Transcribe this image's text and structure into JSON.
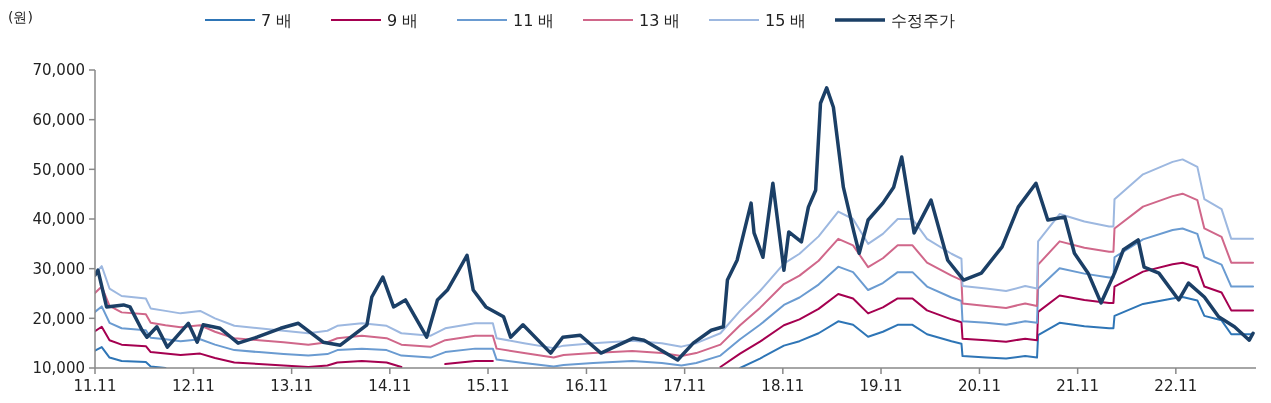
{
  "chart_data": {
    "type": "line",
    "ylabel": "(원)",
    "legend": "top",
    "marker": "none",
    "line_style": "solid",
    "grid": false,
    "xlim": [
      "2011-11-01",
      "2023-08-26"
    ],
    "xticks": [
      {
        "value": "2011-11-01",
        "label": "11.11"
      },
      {
        "value": "2012-11-01",
        "label": "12.11"
      },
      {
        "value": "2013-11-01",
        "label": "13.11"
      },
      {
        "value": "2014-11-01",
        "label": "14.11"
      },
      {
        "value": "2015-11-01",
        "label": "15.11"
      },
      {
        "value": "2016-11-01",
        "label": "16.11"
      },
      {
        "value": "2017-11-01",
        "label": "17.11"
      },
      {
        "value": "2018-11-01",
        "label": "18.11"
      },
      {
        "value": "2019-11-01",
        "label": "19.11"
      },
      {
        "value": "2020-11-01",
        "label": "20.11"
      },
      {
        "value": "2021-11-01",
        "label": "21.11"
      },
      {
        "value": "2022-11-01",
        "label": "22.11"
      }
    ],
    "ylim": [
      10000,
      70000
    ],
    "yticks": [
      {
        "value": 10000,
        "label": "10,000"
      },
      {
        "value": 20000,
        "label": "20,000"
      },
      {
        "value": 30000,
        "label": "30,000"
      },
      {
        "value": 40000,
        "label": "40,000"
      },
      {
        "value": 50000,
        "label": "50,000"
      },
      {
        "value": 60000,
        "label": "60,000"
      },
      {
        "value": 70000,
        "label": "70,000"
      }
    ],
    "x": [
      "2011-11-01",
      "2011-11-26",
      "2011-12-25",
      "2012-02-08",
      "2012-05-08",
      "2012-05-26",
      "2012-07-20",
      "2012-09-14",
      "2012-11-26",
      "2013-01-20",
      "2013-04-02",
      "2013-07-02",
      "2013-10-02",
      "2014-01-02",
      "2014-03-14",
      "2014-04-20",
      "2014-07-20",
      "2014-10-20",
      "2014-12-14",
      "2015-04-02",
      "2015-05-26",
      "2015-09-14",
      "2015-11-19",
      "2015-12-03",
      "2016-03-14",
      "2016-07-02",
      "2016-08-08",
      "2016-11-26",
      "2017-04-20",
      "2017-08-08",
      "2017-10-20",
      "2017-12-14",
      "2018-03-14",
      "2018-05-26",
      "2018-08-08",
      "2018-11-05",
      "2019-01-02",
      "2019-03-14",
      "2019-05-26",
      "2019-07-20",
      "2019-09-14",
      "2019-11-08",
      "2020-01-02",
      "2020-02-26",
      "2020-04-20",
      "2020-07-20",
      "2020-08-26",
      "2020-08-30",
      "2020-11-26",
      "2021-02-08",
      "2021-04-20",
      "2021-06-03",
      "2021-06-07",
      "2021-08-26",
      "2021-11-26",
      "2022-02-26",
      "2022-03-14",
      "2022-03-18",
      "2022-07-02",
      "2022-10-20",
      "2022-11-26",
      "2023-01-20",
      "2023-02-15",
      "2023-04-20",
      "2023-05-26",
      "2023-08-15"
    ],
    "series": [
      {
        "name": "7 배",
        "color": "#2e75b6",
        "values": [
          13500,
          14200,
          12100,
          11400,
          11200,
          10300,
          10000,
          null,
          null,
          null,
          null,
          null,
          null,
          null,
          null,
          null,
          null,
          null,
          null,
          null,
          null,
          null,
          null,
          null,
          null,
          null,
          null,
          null,
          null,
          null,
          null,
          null,
          null,
          10000,
          11900,
          14500,
          15400,
          17000,
          19400,
          18700,
          16300,
          17300,
          18700,
          18700,
          16800,
          15400,
          14900,
          12400,
          12100,
          11900,
          12400,
          12100,
          16600,
          19100,
          18400,
          18000,
          18000,
          20500,
          22900,
          24000,
          24300,
          23600,
          20500,
          19600,
          16800,
          16800
        ]
      },
      {
        "name": "9 배",
        "color": "#a50050",
        "values": [
          17400,
          18300,
          15600,
          14700,
          14400,
          13200,
          12900,
          12600,
          12900,
          12000,
          11100,
          10800,
          10500,
          10200,
          10500,
          11100,
          11400,
          11100,
          10200,
          null,
          10800,
          11400,
          11400,
          null,
          null,
          null,
          null,
          null,
          null,
          null,
          null,
          null,
          10200,
          12900,
          15300,
          18600,
          19800,
          21900,
          24900,
          24000,
          21000,
          22200,
          24000,
          24000,
          21600,
          19800,
          19200,
          15900,
          15600,
          15300,
          15900,
          15600,
          21300,
          24600,
          23700,
          23100,
          23100,
          26400,
          29400,
          30900,
          31200,
          30300,
          26400,
          25200,
          21600,
          21600
        ]
      },
      {
        "name": "11 배",
        "color": "#6a9bd1",
        "values": [
          21300,
          22400,
          19100,
          18000,
          17600,
          16100,
          15800,
          15400,
          15800,
          14700,
          13600,
          13200,
          12800,
          12500,
          12800,
          13600,
          13900,
          13600,
          12500,
          12100,
          13200,
          13900,
          13900,
          11700,
          11000,
          10300,
          10600,
          11000,
          11400,
          11000,
          10500,
          11000,
          12500,
          15800,
          18700,
          22700,
          24200,
          26800,
          30400,
          29300,
          25700,
          27100,
          29300,
          29300,
          26400,
          24200,
          23500,
          19400,
          19100,
          18700,
          19400,
          19100,
          26000,
          30100,
          29000,
          28200,
          28200,
          32300,
          35900,
          37800,
          38100,
          37000,
          32300,
          30800,
          26400,
          26400
        ]
      },
      {
        "name": "13 배",
        "color": "#d0678a",
        "values": [
          25100,
          26400,
          22500,
          21200,
          20800,
          19100,
          18600,
          18200,
          18600,
          17300,
          16000,
          15600,
          15200,
          14700,
          15200,
          16000,
          16500,
          16000,
          14700,
          14300,
          15600,
          16500,
          16500,
          13900,
          13000,
          12100,
          12600,
          13000,
          13400,
          13000,
          12400,
          13000,
          14700,
          18600,
          22100,
          26900,
          28600,
          31600,
          36000,
          34700,
          30300,
          32100,
          34700,
          34700,
          31200,
          28600,
          27700,
          23000,
          22500,
          22100,
          23000,
          22500,
          30800,
          35500,
          34200,
          33400,
          33400,
          38100,
          42500,
          44600,
          45100,
          43800,
          38100,
          36400,
          31200,
          31200
        ]
      },
      {
        "name": "15 배",
        "color": "#9db8e0",
        "values": [
          29000,
          30500,
          26000,
          24500,
          24000,
          22000,
          21500,
          21000,
          21500,
          20000,
          18500,
          18000,
          17500,
          17000,
          17500,
          18500,
          19000,
          18500,
          17000,
          16500,
          18000,
          19000,
          19000,
          16000,
          15000,
          14000,
          14500,
          15000,
          15500,
          15000,
          14300,
          15000,
          17000,
          21500,
          25500,
          31000,
          33000,
          36500,
          41500,
          40000,
          35000,
          37000,
          40000,
          40000,
          36000,
          33000,
          32000,
          26500,
          26000,
          25500,
          26500,
          26000,
          35500,
          41000,
          39500,
          38500,
          38500,
          44000,
          49000,
          51500,
          52000,
          50500,
          44000,
          42000,
          36000,
          36000
        ]
      },
      {
        "name": "수정주가",
        "color": "#1b3f66",
        "x": [
          "2011-11-01",
          "2011-11-12",
          "2011-12-14",
          "2012-02-15",
          "2012-03-10",
          "2012-04-24",
          "2012-05-12",
          "2012-06-18",
          "2012-07-27",
          "2012-10-13",
          "2012-11-15",
          "2012-12-07",
          "2013-02-08",
          "2013-04-16",
          "2013-06-25",
          "2013-09-21",
          "2013-11-26",
          "2014-02-26",
          "2014-05-01",
          "2014-08-08",
          "2014-08-26",
          "2014-10-06",
          "2014-11-15",
          "2014-12-29",
          "2015-03-18",
          "2015-04-27",
          "2015-06-03",
          "2015-07-09",
          "2015-08-15",
          "2015-09-07",
          "2015-10-24",
          "2015-12-29",
          "2016-01-24",
          "2016-03-10",
          "2016-06-21",
          "2016-08-05",
          "2016-10-09",
          "2016-12-25",
          "2017-04-24",
          "2017-06-03",
          "2017-10-06",
          "2017-12-03",
          "2018-02-08",
          "2018-03-25",
          "2018-04-09",
          "2018-05-15",
          "2018-07-06",
          "2018-07-17",
          "2018-08-19",
          "2018-09-25",
          "2018-11-05",
          "2018-11-23",
          "2019-01-09",
          "2019-02-04",
          "2019-03-03",
          "2019-03-21",
          "2019-04-13",
          "2019-05-08",
          "2019-06-14",
          "2019-07-24",
          "2019-08-12",
          "2019-09-14",
          "2019-11-08",
          "2019-12-18",
          "2020-01-17",
          "2020-03-03",
          "2020-05-05",
          "2020-07-06",
          "2020-09-03",
          "2020-11-08",
          "2021-01-24",
          "2021-03-25",
          "2021-05-30",
          "2021-07-13",
          "2021-09-14",
          "2021-10-20",
          "2021-12-10",
          "2022-01-27",
          "2022-03-18",
          "2022-04-20",
          "2022-06-14",
          "2022-07-06",
          "2022-08-30",
          "2022-11-12",
          "2022-12-18",
          "2023-02-15",
          "2023-04-09",
          "2023-06-07",
          "2023-08-01",
          "2023-08-15"
        ],
        "values": [
          28700,
          29700,
          22300,
          22700,
          22300,
          17600,
          16200,
          18300,
          14200,
          19000,
          15200,
          18700,
          18000,
          15000,
          16200,
          18000,
          19000,
          15200,
          14600,
          18700,
          24300,
          28300,
          22300,
          23700,
          16200,
          23700,
          25700,
          29100,
          32700,
          25700,
          22300,
          20300,
          16200,
          18700,
          13000,
          16200,
          16600,
          13000,
          16000,
          15600,
          11600,
          15000,
          17600,
          18300,
          27700,
          31700,
          43200,
          37200,
          32300,
          47200,
          29700,
          37400,
          35400,
          42400,
          45800,
          63300,
          66400,
          62500,
          46400,
          37200,
          33100,
          39800,
          43200,
          46400,
          52500,
          37200,
          43800,
          31700,
          27700,
          29100,
          34400,
          42400,
          47200,
          39800,
          40400,
          33100,
          29100,
          23100,
          29100,
          33800,
          35800,
          30300,
          29100,
          23700,
          27100,
          24300,
          20300,
          18300,
          15600,
          17000
        ]
      }
    ]
  }
}
